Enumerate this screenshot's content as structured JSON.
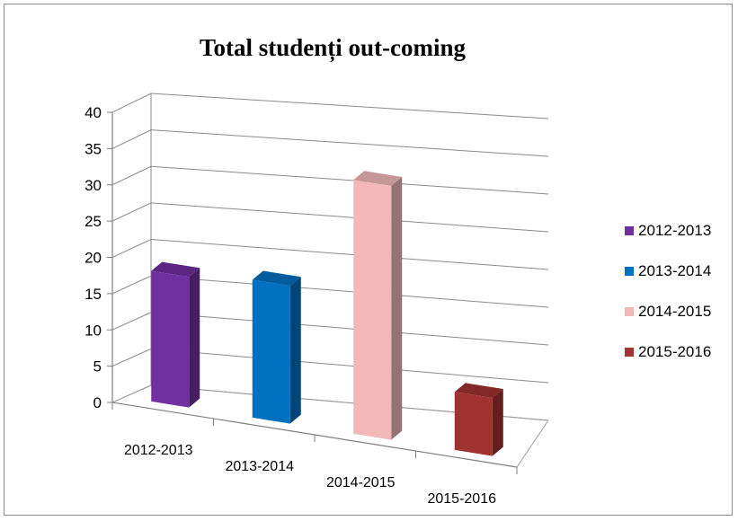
{
  "chart_data": {
    "type": "bar",
    "title": "Total studenți out-coming",
    "categories": [
      "2012-2013",
      "2013-2014",
      "2014-2015",
      "2015-2016"
    ],
    "series": [
      {
        "name": "2012-2013",
        "values": [
          18,
          null,
          null,
          null
        ],
        "color": "#7030A0"
      },
      {
        "name": "2013-2014",
        "values": [
          null,
          19,
          null,
          null
        ],
        "color": "#0070C0"
      },
      {
        "name": "2014-2015",
        "values": [
          null,
          null,
          35,
          null
        ],
        "color": "#F2B8B8"
      },
      {
        "name": "2015-2016",
        "values": [
          null,
          null,
          null,
          8
        ],
        "color": "#A0322F"
      }
    ],
    "values": [
      18,
      19,
      35,
      8
    ],
    "ylim": [
      0,
      40
    ],
    "yticks": [
      0,
      5,
      10,
      15,
      20,
      25,
      30,
      35,
      40
    ],
    "grid": true,
    "legend": "right",
    "style": "3d-clustered-column"
  }
}
